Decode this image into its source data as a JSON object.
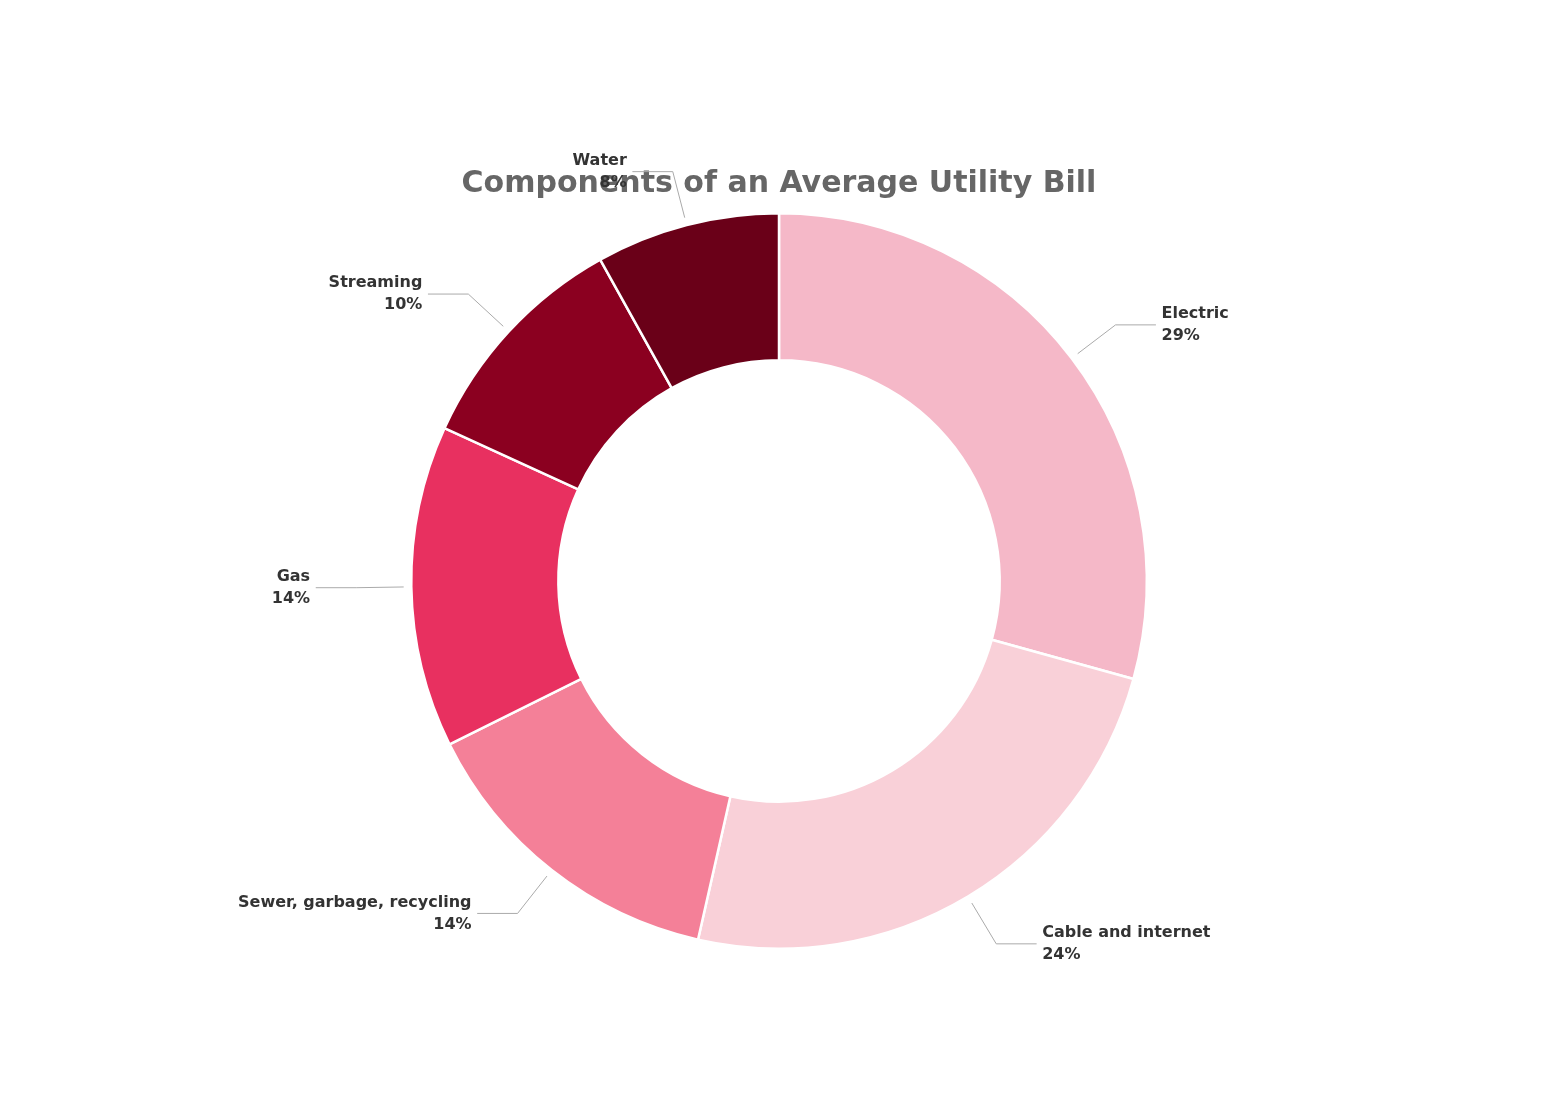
{
  "chart_data": {
    "type": "doughnut",
    "title": "Components of an Average Utility Bill",
    "categories": [
      "Electric",
      "Cable and internet",
      "Sewer, garbage, recycling",
      "Gas",
      "Streaming",
      "Water"
    ],
    "values": [
      29,
      24,
      14,
      14,
      10,
      8
    ],
    "value_labels": [
      "29%",
      "24%",
      "14%",
      "14%",
      "10%",
      "8%"
    ],
    "colors": [
      "#f5b8c8",
      "#f9d0d8",
      "#f48098",
      "#e83060",
      "#8b0020",
      "#6a0018"
    ],
    "data_labels": true,
    "legend": false
  }
}
